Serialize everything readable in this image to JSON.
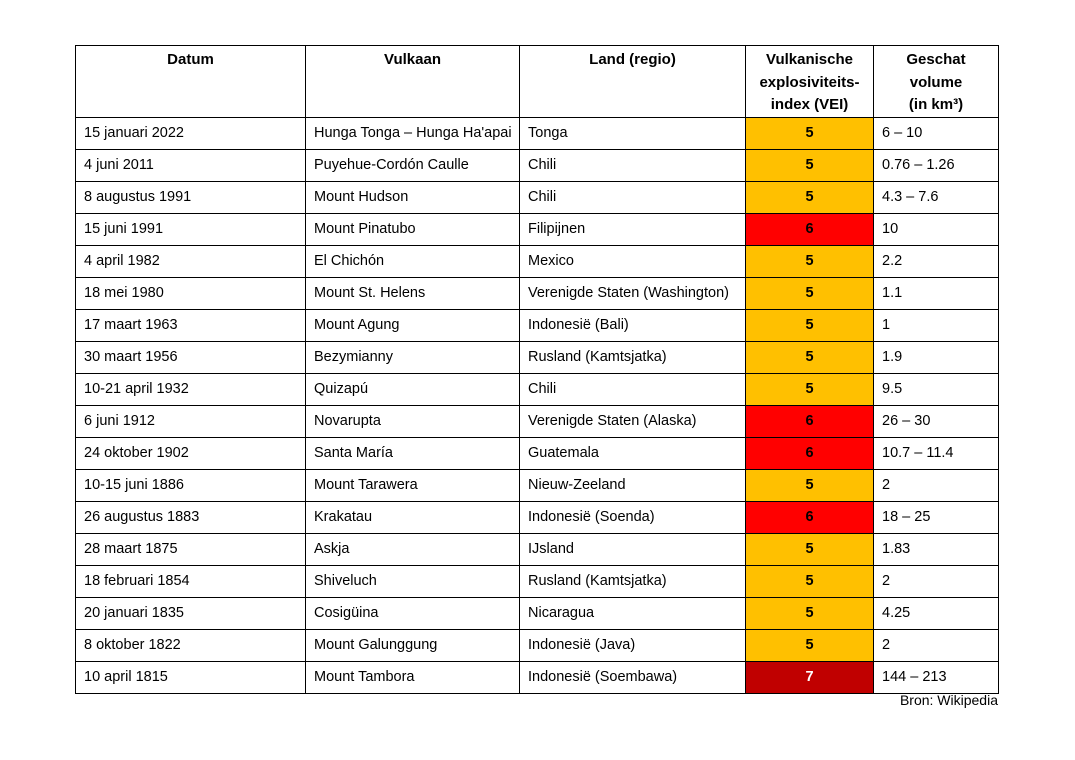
{
  "table": {
    "headers": [
      {
        "label": "Datum"
      },
      {
        "label": "Vulkaan"
      },
      {
        "label": "Land (regio)"
      },
      {
        "label": "Vulkanische\nexplosiviteits-\nindex (VEI)"
      },
      {
        "label": "Geschat\nvolume\n(in km³)"
      }
    ],
    "rows": [
      {
        "datum": "15 januari 2022",
        "vulkaan": "Hunga Tonga – Hunga Ha'apai",
        "land": "Tonga",
        "vei": "5",
        "volume": "6 – 10"
      },
      {
        "datum": "4 juni 2011",
        "vulkaan": "Puyehue-Cordón Caulle",
        "land": "Chili",
        "vei": "5",
        "volume": "0.76 – 1.26"
      },
      {
        "datum": "8 augustus 1991",
        "vulkaan": "Mount Hudson",
        "land": "Chili",
        "vei": "5",
        "volume": "4.3 – 7.6"
      },
      {
        "datum": "15 juni 1991",
        "vulkaan": "Mount Pinatubo",
        "land": "Filipijnen",
        "vei": "6",
        "volume": "10"
      },
      {
        "datum": "4 april 1982",
        "vulkaan": "El Chichón",
        "land": "Mexico",
        "vei": "5",
        "volume": "2.2"
      },
      {
        "datum": "18 mei 1980",
        "vulkaan": "Mount St. Helens",
        "land": "Verenigde Staten (Washington)",
        "vei": "5",
        "volume": "1.1"
      },
      {
        "datum": "17 maart 1963",
        "vulkaan": "Mount Agung",
        "land": "Indonesië (Bali)",
        "vei": "5",
        "volume": "1"
      },
      {
        "datum": "30 maart 1956",
        "vulkaan": "Bezymianny",
        "land": "Rusland (Kamtsjatka)",
        "vei": "5",
        "volume": "1.9"
      },
      {
        "datum": "10-21 april 1932",
        "vulkaan": "Quizapú",
        "land": "Chili",
        "vei": "5",
        "volume": "9.5"
      },
      {
        "datum": "6 juni 1912",
        "vulkaan": "Novarupta",
        "land": "Verenigde Staten (Alaska)",
        "vei": "6",
        "volume": "26 – 30"
      },
      {
        "datum": "24 oktober 1902",
        "vulkaan": "Santa María",
        "land": "Guatemala",
        "vei": "6",
        "volume": "10.7 – 11.4"
      },
      {
        "datum": "10-15 juni 1886",
        "vulkaan": "Mount Tarawera",
        "land": "Nieuw-Zeeland",
        "vei": "5",
        "volume": "2"
      },
      {
        "datum": "26 augustus 1883",
        "vulkaan": "Krakatau",
        "land": "Indonesië (Soenda)",
        "vei": "6",
        "volume": "18 – 25"
      },
      {
        "datum": "28 maart 1875",
        "vulkaan": "Askja",
        "land": "IJsland",
        "vei": "5",
        "volume": "1.83"
      },
      {
        "datum": "18 februari 1854",
        "vulkaan": "Shiveluch",
        "land": "Rusland (Kamtsjatka)",
        "vei": "5",
        "volume": "2"
      },
      {
        "datum": "20 januari 1835",
        "vulkaan": "Cosigüina",
        "land": "Nicaragua",
        "vei": "5",
        "volume": "4.25"
      },
      {
        "datum": "8 oktober 1822",
        "vulkaan": "Mount Galunggung",
        "land": "Indonesië (Java)",
        "vei": "5",
        "volume": "2"
      },
      {
        "datum": "10 april 1815",
        "vulkaan": "Mount Tambora",
        "land": "Indonesië (Soembawa)",
        "vei": "7",
        "volume": "144 – 213"
      }
    ]
  },
  "colors": {
    "vei_5": {
      "bg": "#FFC000",
      "text": "#000000"
    },
    "vei_6": {
      "bg": "#FF0000",
      "text": "#000000"
    },
    "vei_7": {
      "bg": "#C00000",
      "text": "#FFFFFF"
    },
    "border": "#000000",
    "page_background": "#FFFFFF"
  },
  "footer": {
    "source": "Bron: Wikipedia"
  }
}
